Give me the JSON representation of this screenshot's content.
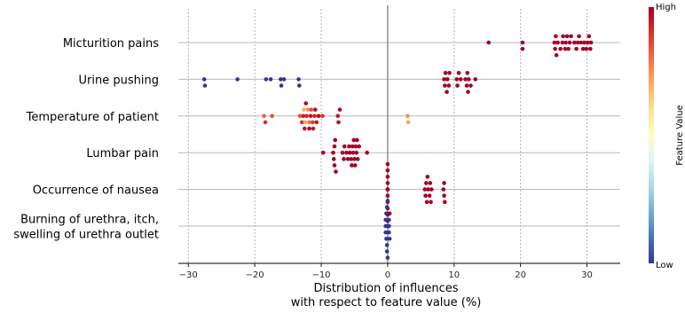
{
  "chart_data": {
    "type": "scatter",
    "subtype": "beeswarm",
    "title": "",
    "xlabel_lines": [
      "Distribution of influences",
      "with respect to feature value (%)"
    ],
    "xticks": [
      -30,
      -20,
      -10,
      0,
      10,
      20,
      30
    ],
    "xtick_labels": [
      "−30",
      "−20",
      "−10",
      "0",
      "10",
      "20",
      "30"
    ],
    "xlim": [
      -31.5,
      35
    ],
    "x_grid": true,
    "colorbar": {
      "label": "Feature Value",
      "high_label": "High",
      "low_label": "Low",
      "colormap": "RdYlBu_r",
      "stops": [
        "#313695",
        "#4575b4",
        "#74add1",
        "#abd9e9",
        "#e0f3f8",
        "#ffffbf",
        "#fee090",
        "#fdae61",
        "#f46d43",
        "#d73027",
        "#a50026"
      ]
    },
    "features": [
      {
        "label_lines": [
          "Micturition pains"
        ],
        "points": [
          [
            15.2,
            1
          ],
          [
            20.3,
            1
          ],
          [
            25.1,
            1
          ],
          [
            25.3,
            1
          ],
          [
            26.0,
            1
          ],
          [
            26.4,
            1
          ],
          [
            26.8,
            1
          ],
          [
            27.2,
            1
          ],
          [
            27.6,
            1
          ],
          [
            28.1,
            1
          ],
          [
            28.6,
            1
          ],
          [
            29.1,
            1
          ],
          [
            29.6,
            1
          ],
          [
            30.1,
            1
          ],
          [
            30.5,
            1
          ],
          [
            25.4,
            1
          ],
          [
            26.3,
            1
          ],
          [
            27.0,
            1
          ],
          [
            28.4,
            1
          ],
          [
            29.4,
            1
          ],
          [
            30.3,
            1
          ],
          [
            25.6,
            1
          ],
          [
            27.4,
            1
          ],
          [
            28.8,
            1
          ],
          [
            20.3,
            1
          ],
          [
            25.2,
            1
          ],
          [
            26.7,
            1
          ],
          [
            29.9,
            1
          ],
          [
            30.6,
            1
          ]
        ]
      },
      {
        "label_lines": [
          "Urine pushing"
        ],
        "points": [
          [
            -27.6,
            0
          ],
          [
            -22.6,
            0
          ],
          [
            -18.3,
            0
          ],
          [
            -17.6,
            0
          ],
          [
            -16.0,
            0
          ],
          [
            -15.6,
            0
          ],
          [
            -13.3,
            0
          ],
          [
            -27.5,
            0
          ],
          [
            -16.1,
            0
          ],
          [
            -13.4,
            0
          ],
          [
            8.5,
            1
          ],
          [
            8.9,
            1
          ],
          [
            9.2,
            1
          ],
          [
            10.5,
            1
          ],
          [
            11.0,
            1
          ],
          [
            11.7,
            1
          ],
          [
            12.0,
            1
          ],
          [
            12.5,
            1
          ],
          [
            13.2,
            1
          ],
          [
            8.7,
            1
          ],
          [
            9.0,
            1
          ],
          [
            10.7,
            1
          ],
          [
            11.9,
            1
          ],
          [
            12.2,
            1
          ],
          [
            8.6,
            1
          ],
          [
            9.3,
            1
          ],
          [
            10.4,
            1
          ],
          [
            12.1,
            1
          ]
        ]
      },
      {
        "label_lines": [
          "Temperature of patient"
        ],
        "points": [
          [
            -18.6,
            0.82
          ],
          [
            -18.4,
            0.9
          ],
          [
            -17.4,
            0.85
          ],
          [
            -13.2,
            0.85
          ],
          [
            -12.6,
            0.7
          ],
          [
            -12.4,
            0.72
          ],
          [
            -12.0,
            0.75
          ],
          [
            -11.8,
            0.8
          ],
          [
            -11.5,
            0.85
          ],
          [
            -11.3,
            0.88
          ],
          [
            -11.0,
            0.92
          ],
          [
            -10.7,
            0.95
          ],
          [
            -10.4,
            0.98
          ],
          [
            -9.8,
            0.9
          ],
          [
            -7.5,
            0.95
          ],
          [
            -7.2,
            0.98
          ],
          [
            3.0,
            0.75
          ],
          [
            -12.9,
            0.9
          ],
          [
            -12.2,
            0.92
          ],
          [
            -11.6,
            0.96
          ],
          [
            -11.2,
            0.95
          ],
          [
            -10.9,
            0.97
          ],
          [
            -12.3,
            0.98
          ],
          [
            -11.8,
            0.99
          ],
          [
            -12.7,
            0.93
          ],
          [
            -7.4,
            0.97
          ],
          [
            3.1,
            0.72
          ],
          [
            -12.5,
            0.96
          ]
        ]
      },
      {
        "label_lines": [
          "Lumbar pain"
        ],
        "points": [
          [
            -9.7,
            1
          ],
          [
            -8.2,
            1
          ],
          [
            -8.0,
            1
          ],
          [
            -7.8,
            1
          ],
          [
            -6.8,
            1
          ],
          [
            -6.5,
            1
          ],
          [
            -6.2,
            1
          ],
          [
            -5.8,
            1
          ],
          [
            -5.5,
            1
          ],
          [
            -5.2,
            1
          ],
          [
            -5.0,
            1
          ],
          [
            -4.6,
            1
          ],
          [
            -4.3,
            1
          ],
          [
            -3.1,
            1
          ],
          [
            -8.1,
            1
          ],
          [
            -6.6,
            1
          ],
          [
            -5.7,
            1
          ],
          [
            -5.1,
            1
          ],
          [
            -4.7,
            1
          ],
          [
            -7.9,
            1
          ],
          [
            -5.4,
            1
          ],
          [
            -4.9,
            1
          ],
          [
            -6.0,
            1
          ],
          [
            -4.5,
            1
          ],
          [
            -5.3,
            1
          ],
          [
            -4.8,
            1
          ],
          [
            -8.0,
            1
          ]
        ]
      },
      {
        "label_lines": [
          "Occurrence of nausea"
        ],
        "points": [
          [
            0.0,
            1
          ],
          [
            0.0,
            1
          ],
          [
            0.0,
            1
          ],
          [
            0.0,
            1
          ],
          [
            0.0,
            1
          ],
          [
            0.0,
            1
          ],
          [
            0.0,
            1
          ],
          [
            0.0,
            1
          ],
          [
            0.0,
            1
          ],
          [
            0.0,
            1
          ],
          [
            0.0,
            1
          ],
          [
            0.0,
            1
          ],
          [
            0.0,
            1
          ],
          [
            5.6,
            1
          ],
          [
            5.8,
            1
          ],
          [
            6.1,
            1
          ],
          [
            6.4,
            1
          ],
          [
            6.6,
            1
          ],
          [
            8.4,
            1
          ],
          [
            8.6,
            1
          ],
          [
            5.7,
            1
          ],
          [
            6.0,
            1
          ],
          [
            6.5,
            1
          ],
          [
            8.5,
            1
          ],
          [
            5.9,
            1
          ],
          [
            6.3,
            1
          ],
          [
            8.5,
            1
          ]
        ]
      },
      {
        "label_lines": [
          "Burning of urethra, itch,",
          "swelling of urethra outlet"
        ],
        "points": [
          [
            -0.3,
            0
          ],
          [
            -0.1,
            0
          ],
          [
            0.1,
            0
          ],
          [
            0.3,
            0
          ],
          [
            -0.2,
            0
          ],
          [
            0.0,
            0
          ],
          [
            0.2,
            0
          ],
          [
            -0.3,
            0
          ],
          [
            0.1,
            0
          ],
          [
            -0.1,
            0
          ],
          [
            0.2,
            0
          ],
          [
            0.0,
            0
          ],
          [
            -0.2,
            0
          ],
          [
            0.3,
            1
          ],
          [
            0.1,
            1
          ],
          [
            -0.1,
            0
          ],
          [
            0.0,
            0
          ],
          [
            0.2,
            0
          ],
          [
            -0.3,
            0
          ],
          [
            0.1,
            0
          ]
        ]
      }
    ]
  }
}
